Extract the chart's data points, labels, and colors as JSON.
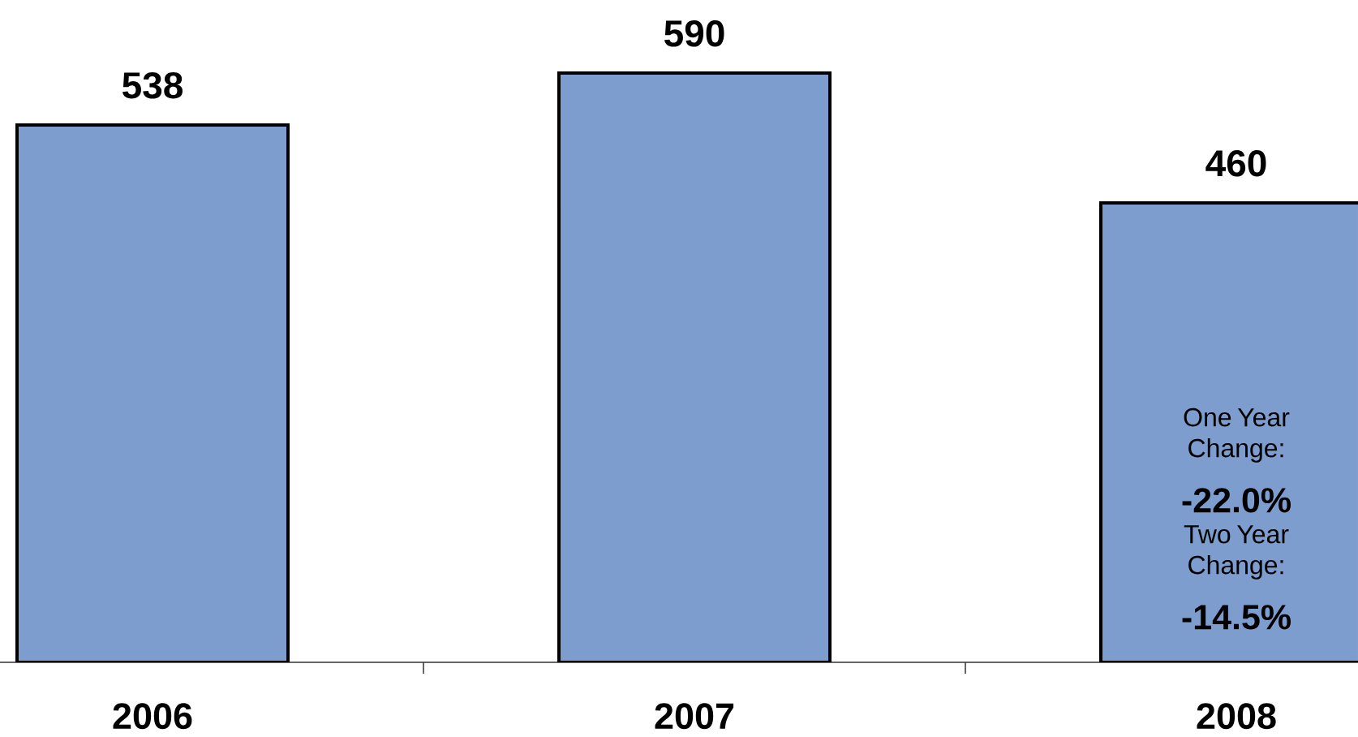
{
  "chart_data": {
    "type": "bar",
    "categories": [
      "2006",
      "2007",
      "2008"
    ],
    "values": [
      538,
      590,
      460
    ],
    "color": "#7e9dcf",
    "data_labels": true,
    "annotations": [
      "One Year Change:",
      "-22.0%",
      "Two Year Change:",
      "-14.5%"
    ]
  }
}
